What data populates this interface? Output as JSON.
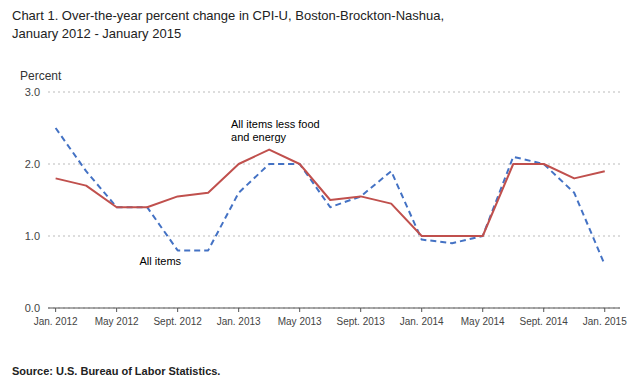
{
  "chart_data": {
    "type": "line",
    "title": "Chart 1.  Over-the-year percent change in CPI-U, Boston-Brockton-Nashua,",
    "subtitle": "January 2012 - January 2015",
    "y_label": "Percent",
    "source": "Source: U.S. Bureau of Labor Statistics.",
    "x": [
      0,
      2,
      4,
      6,
      8,
      10,
      12,
      14,
      16,
      18,
      20,
      22,
      24,
      26,
      28,
      30,
      32,
      34,
      36
    ],
    "xlim": [
      -0.5,
      37
    ],
    "xticks": [
      {
        "value": 0,
        "label": "Jan. 2012"
      },
      {
        "value": 4,
        "label": "May 2012"
      },
      {
        "value": 8,
        "label": "Sept. 2012"
      },
      {
        "value": 12,
        "label": "Jan. 2013"
      },
      {
        "value": 16,
        "label": "May 2013"
      },
      {
        "value": 20,
        "label": "Sept. 2013"
      },
      {
        "value": 24,
        "label": "Jan. 2014"
      },
      {
        "value": 28,
        "label": "May 2014"
      },
      {
        "value": 32,
        "label": "Sept. 2014"
      },
      {
        "value": 36,
        "label": "Jan. 2015"
      }
    ],
    "ylim": [
      0.0,
      3.0
    ],
    "yticks": [
      {
        "value": 0.0,
        "label": "0.0"
      },
      {
        "value": 1.0,
        "label": "1.0"
      },
      {
        "value": 2.0,
        "label": "2.0"
      },
      {
        "value": 3.0,
        "label": "3.0"
      }
    ],
    "grid": true,
    "series": [
      {
        "color": "#4472c4",
        "line_style": "dashed",
        "values": [
          2.5,
          1.9,
          1.4,
          1.4,
          0.8,
          0.8,
          1.6,
          2.0,
          2.0,
          1.4,
          1.55,
          1.9,
          0.95,
          0.9,
          1.0,
          2.1,
          2.0,
          1.6,
          0.6
        ]
      },
      {
        "color": "#c0504d",
        "line_style": "solid",
        "values": [
          1.8,
          1.7,
          1.4,
          1.4,
          1.55,
          1.6,
          2.0,
          2.2,
          2.0,
          1.5,
          1.55,
          1.45,
          1.0,
          1.0,
          1.0,
          2.0,
          2.0,
          1.8,
          1.9
        ]
      }
    ],
    "annotations": [
      {
        "text": "All items",
        "x": 5.5,
        "y": 0.6
      },
      {
        "text": "All items less food\nand energy",
        "x": 11.5,
        "y": 2.32
      }
    ]
  }
}
